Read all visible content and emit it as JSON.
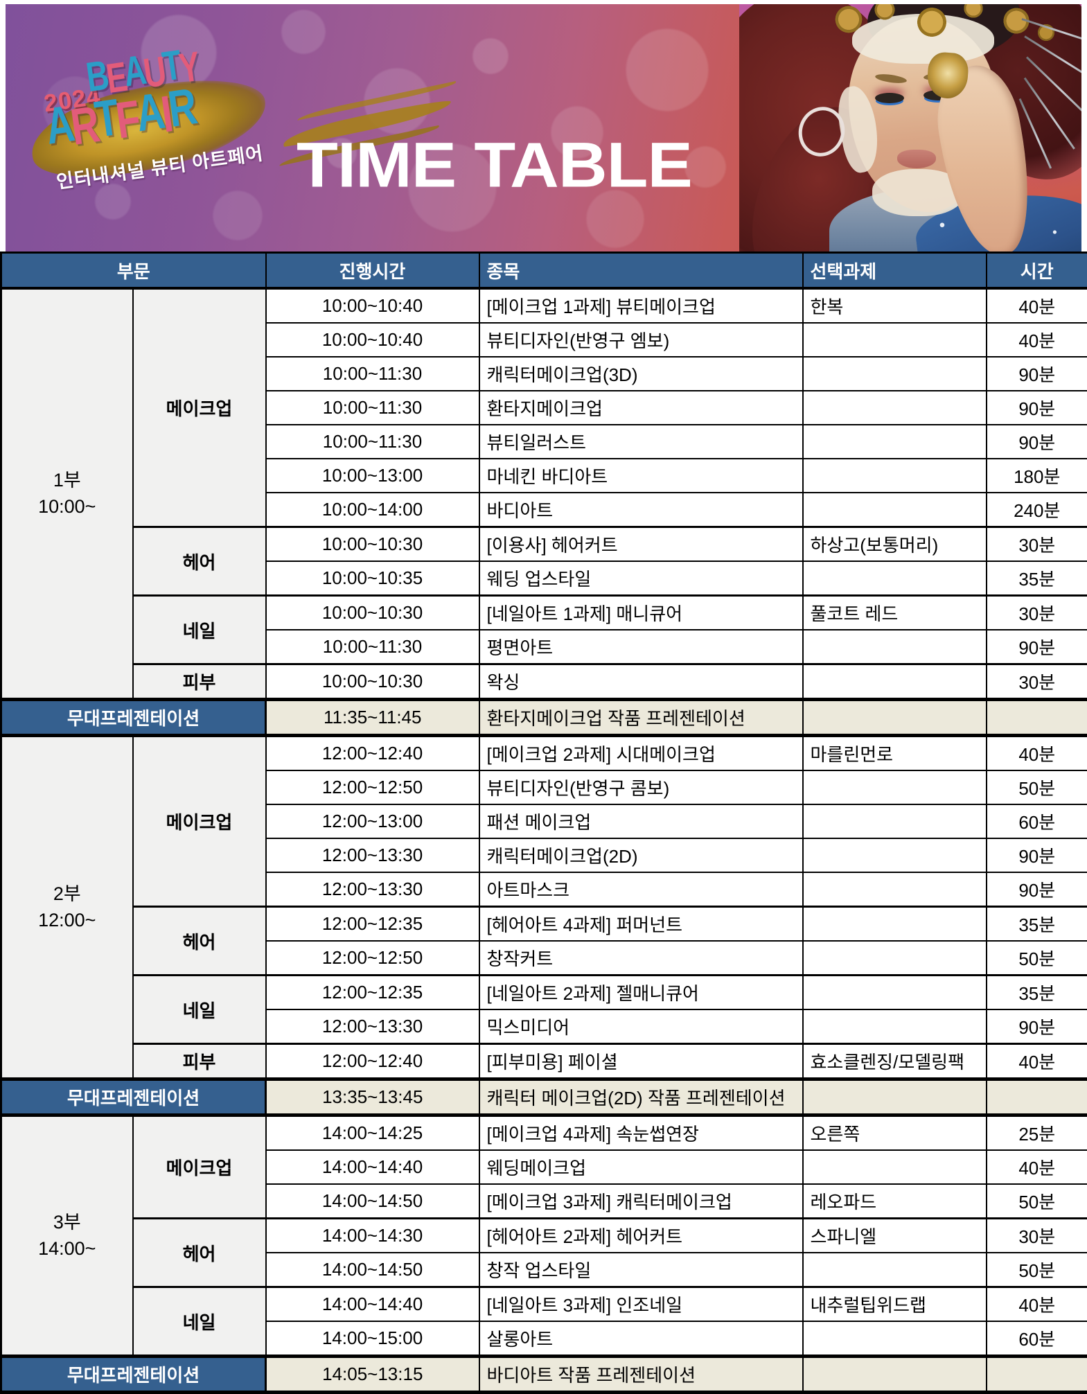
{
  "banner": {
    "logo": {
      "year": "2024",
      "word1": "BEAUTY",
      "word2": "ARTFAIR",
      "subtitle": "인터내셔널 뷰티 아트페어"
    },
    "title": "TIME TABLE"
  },
  "colors": {
    "logo_blue": "#2B9EC7",
    "logo_pink": "#E25C7A",
    "logo_year_pink": "#E65D72",
    "gold_brush": "#C09427",
    "header_blue": "#35608F",
    "presentation_blue": "#35608F",
    "presentation_beige": "#ECE9DB",
    "session_gray": "#F1F1F0",
    "banner_purple": "#80519B",
    "banner_red": "#C14B49"
  },
  "table": {
    "columns": [
      "부문",
      "진행시간",
      "종목",
      "선택과제",
      "시간"
    ],
    "sections": [
      {
        "part": "1부",
        "start": "10:00~",
        "groups": [
          {
            "category": "메이크업",
            "rows": [
              {
                "time": "10:00~10:40",
                "event": "[메이크업 1과제] 뷰티메이크업",
                "task": "한복",
                "duration": "40분"
              },
              {
                "time": "10:00~10:40",
                "event": "뷰티디자인(반영구 엠보)",
                "task": "",
                "duration": "40분"
              },
              {
                "time": "10:00~11:30",
                "event": "캐릭터메이크업(3D)",
                "task": "",
                "duration": "90분"
              },
              {
                "time": "10:00~11:30",
                "event": "환타지메이크업",
                "task": "",
                "duration": "90분"
              },
              {
                "time": "10:00~11:30",
                "event": "뷰티일러스트",
                "task": "",
                "duration": "90분"
              },
              {
                "time": "10:00~13:00",
                "event": "마네킨 바디아트",
                "task": "",
                "duration": "180분"
              },
              {
                "time": "10:00~14:00",
                "event": "바디아트",
                "task": "",
                "duration": "240분"
              }
            ]
          },
          {
            "category": "헤어",
            "rows": [
              {
                "time": "10:00~10:30",
                "event": "[이용사] 헤어커트",
                "task": "하상고(보통머리)",
                "duration": "30분"
              },
              {
                "time": "10:00~10:35",
                "event": "웨딩 업스타일",
                "task": "",
                "duration": "35분"
              }
            ]
          },
          {
            "category": "네일",
            "rows": [
              {
                "time": "10:00~10:30",
                "event": "[네일아트 1과제] 매니큐어",
                "task": "풀코트 레드",
                "duration": "30분"
              },
              {
                "time": "10:00~11:30",
                "event": "평면아트",
                "task": "",
                "duration": "90분"
              }
            ]
          },
          {
            "category": "피부",
            "rows": [
              {
                "time": "10:00~10:30",
                "event": "왁싱",
                "task": "",
                "duration": "30분"
              }
            ]
          }
        ],
        "presentation": {
          "label": "무대프레젠테이션",
          "time": "11:35~11:45",
          "event": "환타지메이크업 작품 프레젠테이션",
          "task": "",
          "duration": ""
        }
      },
      {
        "part": "2부",
        "start": "12:00~",
        "groups": [
          {
            "category": "메이크업",
            "rows": [
              {
                "time": "12:00~12:40",
                "event": "[메이크업 2과제] 시대메이크업",
                "task": "마를린먼로",
                "duration": "40분"
              },
              {
                "time": "12:00~12:50",
                "event": "뷰티디자인(반영구 콤보)",
                "task": "",
                "duration": "50분"
              },
              {
                "time": "12:00~13:00",
                "event": "패션 메이크업",
                "task": "",
                "duration": "60분"
              },
              {
                "time": "12:00~13:30",
                "event": "캐릭터메이크업(2D)",
                "task": "",
                "duration": "90분"
              },
              {
                "time": "12:00~13:30",
                "event": "아트마스크",
                "task": "",
                "duration": "90분"
              }
            ]
          },
          {
            "category": "헤어",
            "rows": [
              {
                "time": "12:00~12:35",
                "event": "[헤어아트 4과제] 퍼머넌트",
                "task": "",
                "duration": "35분"
              },
              {
                "time": "12:00~12:50",
                "event": "창작커트",
                "task": "",
                "duration": "50분"
              }
            ]
          },
          {
            "category": "네일",
            "rows": [
              {
                "time": "12:00~12:35",
                "event": "[네일아트 2과제] 젤매니큐어",
                "task": "",
                "duration": "35분"
              },
              {
                "time": "12:00~13:30",
                "event": "믹스미디어",
                "task": "",
                "duration": "90분"
              }
            ]
          },
          {
            "category": "피부",
            "rows": [
              {
                "time": "12:00~12:40",
                "event": "[피부미용] 페이셜",
                "task": "효소클렌징/모델링팩",
                "duration": "40분"
              }
            ]
          }
        ],
        "presentation": {
          "label": "무대프레젠테이션",
          "time": "13:35~13:45",
          "event": "캐릭터 메이크업(2D) 작품 프레젠테이션",
          "task": "",
          "duration": ""
        }
      },
      {
        "part": "3부",
        "start": "14:00~",
        "groups": [
          {
            "category": "메이크업",
            "rows": [
              {
                "time": "14:00~14:25",
                "event": "[메이크업 4과제] 속눈썹연장",
                "task": "오른쪽",
                "duration": "25분"
              },
              {
                "time": "14:00~14:40",
                "event": "웨딩메이크업",
                "task": "",
                "duration": "40분"
              },
              {
                "time": "14:00~14:50",
                "event": "[메이크업 3과제] 캐릭터메이크업",
                "task": "레오파드",
                "duration": "50분"
              }
            ]
          },
          {
            "category": "헤어",
            "rows": [
              {
                "time": "14:00~14:30",
                "event": "[헤어아트 2과제] 헤어커트",
                "task": "스파니엘",
                "duration": "30분"
              },
              {
                "time": "14:00~14:50",
                "event": "창작 업스타일",
                "task": "",
                "duration": "50분"
              }
            ]
          },
          {
            "category": "네일",
            "rows": [
              {
                "time": "14:00~14:40",
                "event": "[네일아트 3과제] 인조네일",
                "task": "내추럴팁위드랩",
                "duration": "40분"
              },
              {
                "time": "14:00~15:00",
                "event": "살롱아트",
                "task": "",
                "duration": "60분"
              }
            ]
          }
        ],
        "presentation": {
          "label": "무대프레젠테이션",
          "time": "14:05~13:15",
          "event": "바디아트 작품 프레젠테이션",
          "task": "",
          "duration": ""
        }
      }
    ]
  }
}
